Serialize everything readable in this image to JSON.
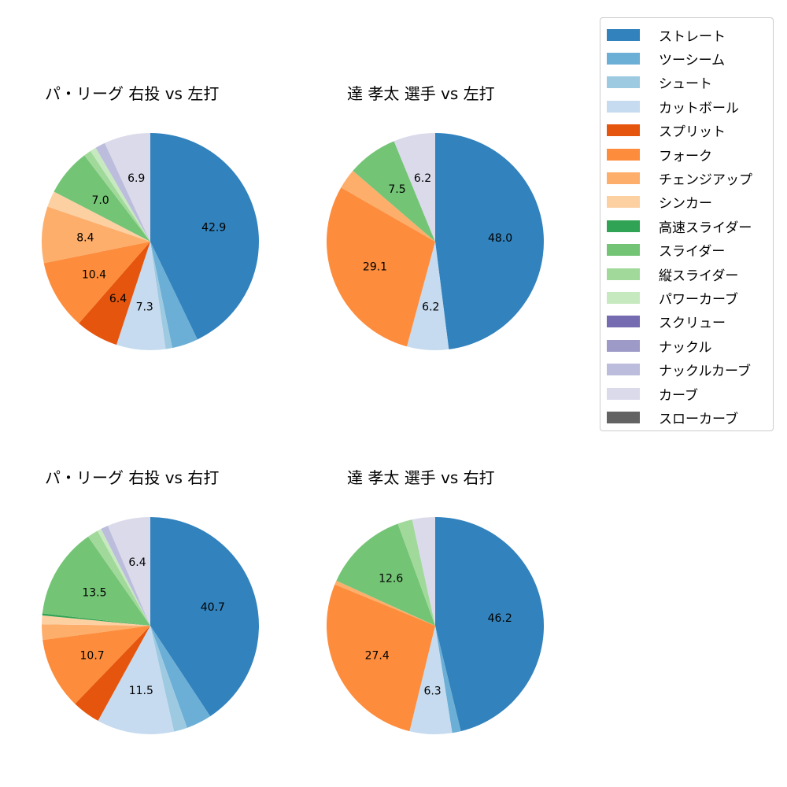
{
  "chart_data": {
    "type": "pie",
    "categories": [
      "ストレート",
      "ツーシーム",
      "シュート",
      "カットボール",
      "スプリット",
      "フォーク",
      "チェンジアップ",
      "シンカー",
      "高速スライダー",
      "スライダー",
      "縦スライダー",
      "パワーカーブ",
      "スクリュー",
      "ナックル",
      "ナックルカーブ",
      "カーブ",
      "スローカーブ"
    ],
    "colors": [
      "#3182bd",
      "#6baed6",
      "#9ecae1",
      "#c6dbef",
      "#e6550d",
      "#fd8d3c",
      "#fdae6b",
      "#fdd0a2",
      "#31a354",
      "#74c476",
      "#a1d99b",
      "#c7e9c0",
      "#756bb1",
      "#9e9ac8",
      "#bcbddc",
      "#dadaeb",
      "#636363"
    ],
    "label_threshold": 6,
    "charts": [
      {
        "title": "パ・リーグ 右投 vs 左打",
        "values": [
          42.9,
          3.9,
          1.0,
          7.3,
          6.4,
          10.4,
          8.4,
          2.4,
          0,
          7.0,
          1.1,
          0.9,
          0,
          0,
          1.5,
          6.9,
          0
        ],
        "shown_labels": [
          "42.9",
          "10.4",
          "8.4"
        ]
      },
      {
        "title": "達 孝太 選手 vs 左打",
        "values": [
          48.0,
          0,
          0,
          6.2,
          0,
          29.1,
          3.0,
          0,
          0,
          7.5,
          0,
          0,
          0,
          0,
          0,
          6.2,
          0
        ],
        "shown_labels": [
          "48.0",
          "6.2",
          "29.1",
          "7.5",
          "6.2"
        ]
      },
      {
        "title": "パ・リーグ 右投 vs 右打",
        "values": [
          40.7,
          3.8,
          2.0,
          11.5,
          4.2,
          10.7,
          2.3,
          1.3,
          0.3,
          13.5,
          1.6,
          0.6,
          0,
          0,
          1.1,
          6.4,
          0
        ],
        "shown_labels": [
          "40.7",
          "11.5",
          "10.7",
          "13.5"
        ]
      },
      {
        "title": "達 孝太 選手 vs 右打",
        "values": [
          46.2,
          1.3,
          0,
          6.3,
          0,
          27.4,
          0.6,
          0,
          0,
          12.6,
          2.2,
          0,
          0,
          0,
          0,
          3.4,
          0
        ],
        "shown_labels": [
          "46.2",
          "6.3",
          "27.4",
          "12.6"
        ]
      }
    ],
    "legend_position": "upper right",
    "start_angle": 90,
    "direction": "clockwise"
  },
  "titles": {
    "tl": "パ・リーグ 右投 vs 左打",
    "tr": "達 孝太 選手 vs 左打",
    "bl": "パ・リーグ 右投 vs 右打",
    "br": "達 孝太 選手 vs 右打"
  },
  "legend": {
    "items": [
      {
        "label": "ストレート",
        "color": "#3182bd"
      },
      {
        "label": "ツーシーム",
        "color": "#6baed6"
      },
      {
        "label": "シュート",
        "color": "#9ecae1"
      },
      {
        "label": "カットボール",
        "color": "#c6dbef"
      },
      {
        "label": "スプリット",
        "color": "#e6550d"
      },
      {
        "label": "フォーク",
        "color": "#fd8d3c"
      },
      {
        "label": "チェンジアップ",
        "color": "#fdae6b"
      },
      {
        "label": "シンカー",
        "color": "#fdd0a2"
      },
      {
        "label": "高速スライダー",
        "color": "#31a354"
      },
      {
        "label": "スライダー",
        "color": "#74c476"
      },
      {
        "label": "縦スライダー",
        "color": "#a1d99b"
      },
      {
        "label": "パワーカーブ",
        "color": "#c7e9c0"
      },
      {
        "label": "スクリュー",
        "color": "#756bb1"
      },
      {
        "label": "ナックル",
        "color": "#9e9ac8"
      },
      {
        "label": "ナックルカーブ",
        "color": "#bcbddc"
      },
      {
        "label": "カーブ",
        "color": "#dadaeb"
      },
      {
        "label": "スローカーブ",
        "color": "#636363"
      }
    ]
  }
}
